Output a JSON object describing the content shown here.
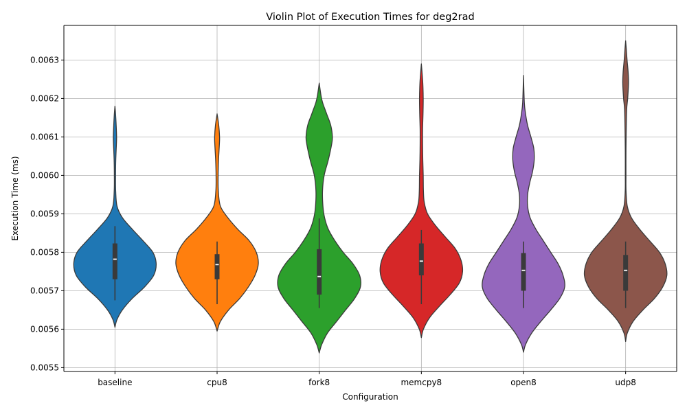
{
  "chart_data": {
    "type": "violin",
    "title": "Violin Plot of Execution Times for deg2rad",
    "xlabel": "Configuration",
    "ylabel": "Execution Time (ms)",
    "ylim": [
      0.00549,
      0.00639
    ],
    "yticks": [
      "0.0055",
      "0.0056",
      "0.0057",
      "0.0058",
      "0.0059",
      "0.0060",
      "0.0061",
      "0.0062",
      "0.0063"
    ],
    "grid": true,
    "categories": [
      "baseline",
      "cpu8",
      "fork8",
      "memcpy8",
      "open8",
      "udp8"
    ],
    "series": [
      {
        "category": "baseline",
        "color": "#1f77b4",
        "median": 0.005782,
        "q1": 0.00573,
        "q3": 0.005823,
        "whisker_low": 0.005675,
        "whisker_high": 0.005868,
        "profile": [
          [
            0.005605,
            0
          ],
          [
            0.005625,
            0.05
          ],
          [
            0.00565,
            0.18
          ],
          [
            0.00568,
            0.42
          ],
          [
            0.00571,
            0.72
          ],
          [
            0.00574,
            0.94
          ],
          [
            0.00577,
            1.0
          ],
          [
            0.0058,
            0.92
          ],
          [
            0.00583,
            0.68
          ],
          [
            0.00586,
            0.42
          ],
          [
            0.00589,
            0.18
          ],
          [
            0.00592,
            0.05
          ],
          [
            0.00596,
            0.018
          ],
          [
            0.006,
            0.015
          ],
          [
            0.00604,
            0.02
          ],
          [
            0.00608,
            0.035
          ],
          [
            0.0061,
            0.04
          ],
          [
            0.00613,
            0.03
          ],
          [
            0.00616,
            0.015
          ],
          [
            0.00618,
            0
          ]
        ]
      },
      {
        "category": "cpu8",
        "color": "#ff7f0e",
        "median": 0.005768,
        "q1": 0.00573,
        "q3": 0.005795,
        "whisker_low": 0.005665,
        "whisker_high": 0.005828,
        "profile": [
          [
            0.005595,
            0
          ],
          [
            0.00562,
            0.08
          ],
          [
            0.00565,
            0.28
          ],
          [
            0.00568,
            0.55
          ],
          [
            0.00571,
            0.76
          ],
          [
            0.00574,
            0.92
          ],
          [
            0.00577,
            1.0
          ],
          [
            0.0058,
            0.95
          ],
          [
            0.00583,
            0.78
          ],
          [
            0.00586,
            0.5
          ],
          [
            0.00589,
            0.26
          ],
          [
            0.00592,
            0.08
          ],
          [
            0.00596,
            0.03
          ],
          [
            0.006,
            0.025
          ],
          [
            0.00604,
            0.035
          ],
          [
            0.00608,
            0.055
          ],
          [
            0.0061,
            0.06
          ],
          [
            0.00613,
            0.04
          ],
          [
            0.00616,
            0
          ]
        ]
      },
      {
        "category": "fork8",
        "color": "#2ca02c",
        "median": 0.005737,
        "q1": 0.00569,
        "q3": 0.005808,
        "whisker_low": 0.005655,
        "whisker_high": 0.005888,
        "profile": [
          [
            0.005538,
            0
          ],
          [
            0.00556,
            0.06
          ],
          [
            0.00559,
            0.2
          ],
          [
            0.00562,
            0.42
          ],
          [
            0.00565,
            0.64
          ],
          [
            0.00568,
            0.86
          ],
          [
            0.00571,
            1.0
          ],
          [
            0.00574,
            0.98
          ],
          [
            0.00577,
            0.82
          ],
          [
            0.0058,
            0.58
          ],
          [
            0.00583,
            0.38
          ],
          [
            0.00586,
            0.22
          ],
          [
            0.00589,
            0.13
          ],
          [
            0.00592,
            0.09
          ],
          [
            0.00596,
            0.08
          ],
          [
            0.006,
            0.12
          ],
          [
            0.00604,
            0.22
          ],
          [
            0.00608,
            0.3
          ],
          [
            0.0061,
            0.32
          ],
          [
            0.00613,
            0.28
          ],
          [
            0.00616,
            0.18
          ],
          [
            0.00619,
            0.08
          ],
          [
            0.00621,
            0.04
          ],
          [
            0.00624,
            0
          ]
        ]
      },
      {
        "category": "memcpy8",
        "color": "#d62728",
        "median": 0.005777,
        "q1": 0.00574,
        "q3": 0.005823,
        "whisker_low": 0.005665,
        "whisker_high": 0.005858,
        "profile": [
          [
            0.005578,
            0
          ],
          [
            0.0056,
            0.05
          ],
          [
            0.00563,
            0.2
          ],
          [
            0.00566,
            0.44
          ],
          [
            0.00569,
            0.7
          ],
          [
            0.00572,
            0.92
          ],
          [
            0.00575,
            1.0
          ],
          [
            0.00578,
            0.96
          ],
          [
            0.00581,
            0.82
          ],
          [
            0.00584,
            0.58
          ],
          [
            0.00587,
            0.34
          ],
          [
            0.0059,
            0.15
          ],
          [
            0.00593,
            0.07
          ],
          [
            0.00596,
            0.05
          ],
          [
            0.006,
            0.045
          ],
          [
            0.00604,
            0.035
          ],
          [
            0.00608,
            0.03
          ],
          [
            0.00612,
            0.03
          ],
          [
            0.00616,
            0.04
          ],
          [
            0.0062,
            0.045
          ],
          [
            0.00624,
            0.035
          ],
          [
            0.00627,
            0.015
          ],
          [
            0.00629,
            0
          ]
        ]
      },
      {
        "category": "open8",
        "color": "#9467bd",
        "median": 0.005753,
        "q1": 0.0057,
        "q3": 0.005798,
        "whisker_low": 0.005655,
        "whisker_high": 0.005828,
        "profile": [
          [
            0.00554,
            0
          ],
          [
            0.00556,
            0.05
          ],
          [
            0.00559,
            0.2
          ],
          [
            0.00562,
            0.42
          ],
          [
            0.00565,
            0.66
          ],
          [
            0.00568,
            0.88
          ],
          [
            0.00571,
            1.0
          ],
          [
            0.00574,
            0.96
          ],
          [
            0.00577,
            0.84
          ],
          [
            0.0058,
            0.66
          ],
          [
            0.00583,
            0.48
          ],
          [
            0.00586,
            0.3
          ],
          [
            0.00589,
            0.16
          ],
          [
            0.00592,
            0.1
          ],
          [
            0.00595,
            0.1
          ],
          [
            0.00598,
            0.15
          ],
          [
            0.00601,
            0.22
          ],
          [
            0.00604,
            0.26
          ],
          [
            0.00607,
            0.25
          ],
          [
            0.0061,
            0.18
          ],
          [
            0.00613,
            0.1
          ],
          [
            0.00616,
            0.05
          ],
          [
            0.00619,
            0.02
          ],
          [
            0.00626,
            0
          ]
        ]
      },
      {
        "category": "udp8",
        "color": "#8c564b",
        "median": 0.005753,
        "q1": 0.0057,
        "q3": 0.005793,
        "whisker_low": 0.005655,
        "whisker_high": 0.005828,
        "profile": [
          [
            0.005568,
            0
          ],
          [
            0.00559,
            0.04
          ],
          [
            0.00562,
            0.18
          ],
          [
            0.00565,
            0.42
          ],
          [
            0.00568,
            0.7
          ],
          [
            0.00571,
            0.9
          ],
          [
            0.00574,
            1.0
          ],
          [
            0.00577,
            0.96
          ],
          [
            0.0058,
            0.82
          ],
          [
            0.00583,
            0.58
          ],
          [
            0.00586,
            0.34
          ],
          [
            0.00589,
            0.14
          ],
          [
            0.00592,
            0.04
          ],
          [
            0.00596,
            0.01
          ],
          [
            0.006,
            0.008
          ],
          [
            0.00605,
            0.008
          ],
          [
            0.0061,
            0.012
          ],
          [
            0.00617,
            0.025
          ],
          [
            0.0062,
            0.05
          ],
          [
            0.00624,
            0.07
          ],
          [
            0.00627,
            0.06
          ],
          [
            0.0063,
            0.035
          ],
          [
            0.00633,
            0.015
          ],
          [
            0.00635,
            0
          ]
        ]
      }
    ]
  }
}
